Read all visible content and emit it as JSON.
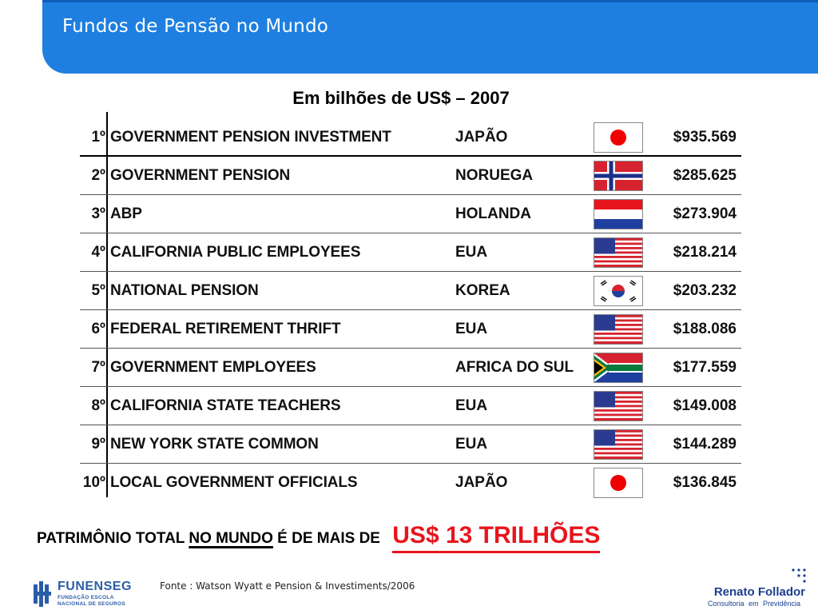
{
  "header": {
    "title": "Fundos de Pensão no Mundo"
  },
  "subtitle": "Em bilhões de US$ – 2007",
  "table": {
    "rows": [
      {
        "rank": "1º",
        "name": "GOVERNMENT PENSION INVESTMENT",
        "country": "JAPÃO",
        "flag": "japan-flag-icon",
        "value": "$935.569"
      },
      {
        "rank": "2º",
        "name": "GOVERNMENT PENSION",
        "country": "NORUEGA",
        "flag": "norway-flag-icon",
        "value": "$285.625"
      },
      {
        "rank": "3º",
        "name": "ABP",
        "country": "HOLANDA",
        "flag": "netherlands-flag-icon",
        "value": "$273.904"
      },
      {
        "rank": "4º",
        "name": "CALIFORNIA PUBLIC EMPLOYEES",
        "country": "EUA",
        "flag": "usa-flag-icon",
        "value": "$218.214"
      },
      {
        "rank": "5º",
        "name": "NATIONAL PENSION",
        "country": "KOREA",
        "flag": "korea-flag-icon",
        "value": "$203.232"
      },
      {
        "rank": "6º",
        "name": "FEDERAL RETIREMENT THRIFT",
        "country": "EUA",
        "flag": "usa-flag-icon",
        "value": "$188.086"
      },
      {
        "rank": "7º",
        "name": "GOVERNMENT EMPLOYEES",
        "country": "AFRICA DO SUL",
        "flag": "south-africa-flag-icon",
        "value": "$177.559"
      },
      {
        "rank": "8º",
        "name": "CALIFORNIA STATE TEACHERS",
        "country": "EUA",
        "flag": "usa-flag-icon",
        "value": "$149.008"
      },
      {
        "rank": "9º",
        "name": "NEW YORK STATE COMMON",
        "country": "EUA",
        "flag": "usa-flag-icon",
        "value": "$144.289"
      },
      {
        "rank": "10º",
        "name": "LOCAL GOVERNMENT OFFICIALS",
        "country": "JAPÃO",
        "flag": "japan-flag-icon",
        "value": "$136.845"
      }
    ]
  },
  "total": {
    "part1": "PATRIMÔNIO TOTAL ",
    "underlined": "NO MUNDO",
    "part2": " É DE MAIS DE ",
    "highlight": "US$ 13 TRILHÕES"
  },
  "source": "Fonte : Watson Wyatt e Pension & Investiments/2006",
  "logos": {
    "funenseg": {
      "name": "FUNENSEG",
      "line1": "FUNDAÇÃO ESCOLA",
      "line2": "NACIONAL DE SEGUROS"
    },
    "follador": {
      "name": "Renato Follador",
      "tagline": "Consultoria em Previdência"
    }
  },
  "colors": {
    "header": "#1e7fe0",
    "highlight": "#e8141c",
    "logo_blue": "#2a5da8"
  }
}
